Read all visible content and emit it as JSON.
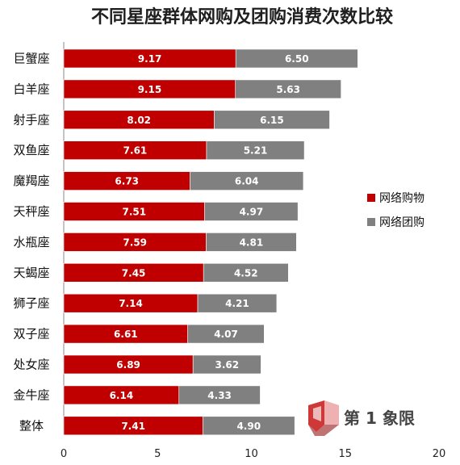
{
  "chart_data": {
    "type": "bar",
    "orientation": "horizontal",
    "stacked": true,
    "title": "不同星座群体网购及团购消费次数比较",
    "categories": [
      "巨蟹座",
      "白羊座",
      "射手座",
      "双鱼座",
      "魔羯座",
      "天秤座",
      "水瓶座",
      "天蝎座",
      "狮子座",
      "双子座",
      "处女座",
      "金牛座",
      "整体"
    ],
    "series": [
      {
        "name": "网络购物",
        "color": "#c00000",
        "values": [
          9.17,
          9.15,
          8.02,
          7.61,
          6.73,
          7.51,
          7.59,
          7.45,
          7.14,
          6.61,
          6.89,
          6.14,
          7.41
        ],
        "labels": [
          "9.17",
          "9.15",
          "8.02",
          "7.61",
          "6.73",
          "7.51",
          "7.59",
          "7.45",
          "7.14",
          "6.61",
          "6.89",
          "6.14",
          "7.41"
        ]
      },
      {
        "name": "网络团购",
        "color": "#808080",
        "values": [
          6.5,
          5.63,
          6.15,
          5.21,
          6.04,
          4.97,
          4.81,
          4.52,
          4.21,
          4.07,
          3.62,
          4.33,
          4.9
        ],
        "labels": [
          "6.50",
          "5.63",
          "6.15",
          "5.21",
          "6.04",
          "4.97",
          "4.81",
          "4.52",
          "4.21",
          "4.07",
          "3.62",
          "4.33",
          "4.90"
        ]
      }
    ],
    "xlim": [
      0,
      20
    ],
    "xticks": [
      0,
      5,
      10,
      15,
      20
    ],
    "xtick_labels": [
      "0",
      "5",
      "10",
      "15",
      "20"
    ],
    "grid": false,
    "legend_position": "right"
  },
  "watermark": {
    "text": "第 1 象限",
    "logo_icon": "di-yi-xiang-xian-logo-icon"
  }
}
